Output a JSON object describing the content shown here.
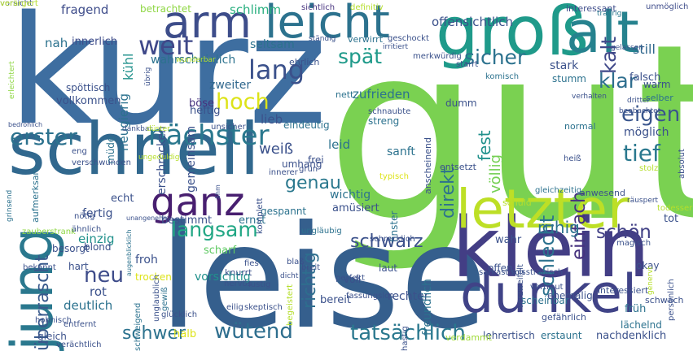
{
  "words": [
    {
      "text": "gut",
      "color": "#7ad151"
    },
    {
      "text": "kurz",
      "color": "#3e6ea0"
    },
    {
      "text": "leise",
      "color": "#355f8d"
    },
    {
      "text": "groß",
      "color": "#1f9a8a"
    },
    {
      "text": "klein",
      "color": "#433e85"
    },
    {
      "text": "schnell",
      "color": "#31688e"
    },
    {
      "text": "jung",
      "color": "#2a788e"
    },
    {
      "text": "dunkel",
      "color": "#404387"
    },
    {
      "text": "alt",
      "color": "#26828e"
    },
    {
      "text": "leicht",
      "color": "#2c728e"
    },
    {
      "text": "letzter",
      "color": "#bddf26"
    },
    {
      "text": "arm",
      "color": "#3d4d8a"
    },
    {
      "text": "ganz",
      "color": "#481f70"
    },
    {
      "text": "nächster",
      "color": "#2a788e"
    },
    {
      "text": "lang",
      "color": "#3b518b"
    },
    {
      "text": "weit",
      "color": "#3f4889"
    },
    {
      "text": "hoch",
      "color": "#dde318"
    },
    {
      "text": "spät",
      "color": "#1f9a8a"
    },
    {
      "text": "sicher",
      "color": "#2c728e"
    },
    {
      "text": "kalt",
      "color": "#3f4889"
    },
    {
      "text": "klar",
      "color": "#2e6e8e"
    },
    {
      "text": "fest",
      "color": "#21918c"
    },
    {
      "text": "eigen",
      "color": "#39558c"
    },
    {
      "text": "tief",
      "color": "#2a788e"
    },
    {
      "text": "einfach",
      "color": "#46327e"
    },
    {
      "text": "schlecht",
      "color": "#2c728e"
    },
    {
      "text": "völlig",
      "color": "#75d054"
    },
    {
      "text": "langsam",
      "color": "#22a785"
    },
    {
      "text": "genau",
      "color": "#2a788e"
    },
    {
      "text": "richtig",
      "color": "#2e6e8e"
    },
    {
      "text": "schwarz",
      "color": "#3b518b"
    },
    {
      "text": "ruhig",
      "color": "#2c728e"
    },
    {
      "text": "schön",
      "color": "#424186"
    },
    {
      "text": "erster",
      "color": "#2c728e"
    },
    {
      "text": "neu",
      "color": "#3e4c8a"
    },
    {
      "text": "überrascht",
      "color": "#38598c"
    },
    {
      "text": "schwer",
      "color": "#2c728e"
    },
    {
      "text": "wütend",
      "color": "#2e6e8e"
    },
    {
      "text": "tatsächlich",
      "color": "#2a788e"
    },
    {
      "text": "direkt",
      "color": "#2c728e"
    },
    {
      "text": "weiß",
      "color": "#3b518b"
    },
    {
      "text": "fragend",
      "color": "#3e4c8a"
    },
    {
      "text": "betrachtet",
      "color": "#8fd744"
    },
    {
      "text": "schlimm",
      "color": "#29af7f"
    },
    {
      "text": "sichtlich",
      "color": "#46327e"
    },
    {
      "text": "definitiv",
      "color": "#b5de2b"
    },
    {
      "text": "interessant",
      "color": "#3e4c8a"
    },
    {
      "text": "neugierig",
      "color": "#2c728e"
    },
    {
      "text": "innerlich",
      "color": "#3e4c8a"
    },
    {
      "text": "nah",
      "color": "#2c728e"
    },
    {
      "text": "wahrscheinlich",
      "color": "#2c728e"
    },
    {
      "text": "seltsam",
      "color": "#2c728e"
    },
    {
      "text": "offensichtlich",
      "color": "#3b518b"
    },
    {
      "text": "unmöglich",
      "color": "#3e4c8a"
    },
    {
      "text": "traurig",
      "color": "#2a788e"
    },
    {
      "text": "kühl",
      "color": "#21918c"
    },
    {
      "text": "erschrocken",
      "color": "#3b518b"
    },
    {
      "text": "still",
      "color": "#31688e"
    },
    {
      "text": "zweiter",
      "color": "#31688e"
    },
    {
      "text": "gemeinsam",
      "color": "#3b518b"
    },
    {
      "text": "heftig",
      "color": "#3b518b"
    },
    {
      "text": "böse",
      "color": "#46327e"
    },
    {
      "text": "ehrlich",
      "color": "#3b518b"
    },
    {
      "text": "nett",
      "color": "#2c728e"
    },
    {
      "text": "dumm",
      "color": "#3b518b"
    },
    {
      "text": "zufrieden",
      "color": "#2c728e"
    },
    {
      "text": "stark",
      "color": "#3b518b"
    },
    {
      "text": "stumm",
      "color": "#2c728e"
    },
    {
      "text": "falsch",
      "color": "#3b518b"
    },
    {
      "text": "warm",
      "color": "#3b518b"
    },
    {
      "text": "selber",
      "color": "#2c728e"
    },
    {
      "text": "möglich",
      "color": "#3b518b"
    },
    {
      "text": "lieb",
      "color": "#3b518b"
    },
    {
      "text": "eindeutig",
      "color": "#2c728e"
    },
    {
      "text": "streng",
      "color": "#2c728e"
    },
    {
      "text": "sanft",
      "color": "#2c728e"
    },
    {
      "text": "wichtig",
      "color": "#2c728e"
    },
    {
      "text": "amüsiert",
      "color": "#3b518b"
    },
    {
      "text": "umhang",
      "color": "#3b518b"
    },
    {
      "text": "frei",
      "color": "#3b518b"
    },
    {
      "text": "leid",
      "color": "#2c728e"
    },
    {
      "text": "echt",
      "color": "#3b518b"
    },
    {
      "text": "fertig",
      "color": "#3b518b"
    },
    {
      "text": "bestimmt",
      "color": "#3b518b"
    },
    {
      "text": "ernst",
      "color": "#2c728e"
    },
    {
      "text": "wahr",
      "color": "#3b518b"
    },
    {
      "text": "tot",
      "color": "#3b518b"
    },
    {
      "text": "einzig",
      "color": "#21918c"
    },
    {
      "text": "scharf",
      "color": "#5ec962"
    },
    {
      "text": "froh",
      "color": "#3b518b"
    },
    {
      "text": "vorsichtig",
      "color": "#21918c"
    },
    {
      "text": "rot",
      "color": "#3b518b"
    },
    {
      "text": "deutlich",
      "color": "#2c728e"
    },
    {
      "text": "halb",
      "color": "#dde318"
    },
    {
      "text": "gleich",
      "color": "#3b518b"
    },
    {
      "text": "rechter",
      "color": "#3b518b"
    },
    {
      "text": "bereit",
      "color": "#3b518b"
    },
    {
      "text": "früh",
      "color": "#2c728e"
    },
    {
      "text": "lächelnd",
      "color": "#2c728e"
    },
    {
      "text": "nachdenklich",
      "color": "#3b518b"
    },
    {
      "text": "erstaunt",
      "color": "#2c728e"
    },
    {
      "text": "lehrertisch",
      "color": "#3b518b"
    },
    {
      "text": "verdammt",
      "color": "#a0da39"
    },
    {
      "text": "scheinbar",
      "color": "#2c728e"
    },
    {
      "text": "ehemalig",
      "color": "#3b518b"
    },
    {
      "text": "offen",
      "color": "#3b518b"
    },
    {
      "text": "schwach",
      "color": "#3b518b"
    },
    {
      "text": "okay",
      "color": "#3b518b"
    },
    {
      "text": "freundlich",
      "color": "#2c728e"
    },
    {
      "text": "finster",
      "color": "#2c728e"
    },
    {
      "text": "anscheinend",
      "color": "#3b518b"
    },
    {
      "text": "laut",
      "color": "#3b518b"
    },
    {
      "text": "voll",
      "color": "#3b518b"
    },
    {
      "text": "spöttisch",
      "color": "#3b518b"
    },
    {
      "text": "vollkommen",
      "color": "#3b518b"
    },
    {
      "text": "aufmerksam",
      "color": "#2c728e"
    },
    {
      "text": "erleichtert",
      "color": "#8fd744"
    },
    {
      "text": "bedrohlich",
      "color": "#3b518b"
    },
    {
      "text": "müde",
      "color": "#2c728e"
    },
    {
      "text": "trocken",
      "color": "#dde318"
    },
    {
      "text": "glücklich",
      "color": "#3b518b"
    },
    {
      "text": "gewiß",
      "color": "#2c728e"
    },
    {
      "text": "unglaublich",
      "color": "#3b518b"
    },
    {
      "text": "blond",
      "color": "#3b518b"
    },
    {
      "text": "besorgt",
      "color": "#3b518b"
    },
    {
      "text": "hart",
      "color": "#3b518b"
    },
    {
      "text": "knurrt",
      "color": "#3b518b"
    },
    {
      "text": "nervös",
      "color": "#3b518b"
    },
    {
      "text": "magisch",
      "color": "#3b518b"
    },
    {
      "text": "gefährlich",
      "color": "#3b518b"
    },
    {
      "text": "todesser",
      "color": "#b5de2b"
    },
    {
      "text": "absolut",
      "color": "#3b518b"
    },
    {
      "text": "persönlich",
      "color": "#3b518b"
    },
    {
      "text": "interessiert",
      "color": "#3b518b"
    },
    {
      "text": "schuld",
      "color": "#b5de2b"
    },
    {
      "text": "anwesend",
      "color": "#3b518b"
    },
    {
      "text": "entsetzt",
      "color": "#3b518b"
    },
    {
      "text": "normal",
      "color": "#2c728e"
    },
    {
      "text": "genervt",
      "color": "#b5de2b"
    },
    {
      "text": "ungläubig",
      "color": "#2c728e"
    },
    {
      "text": "gespannt",
      "color": "#2c728e"
    },
    {
      "text": "räuspert",
      "color": "#3b518b"
    },
    {
      "text": "stolz",
      "color": "#b5de2b"
    },
    {
      "text": "gleichzeitig",
      "color": "#2c728e"
    },
    {
      "text": "dritter",
      "color": "#3b518b"
    },
    {
      "text": "beobachtet",
      "color": "#3b518b"
    },
    {
      "text": "verhalten",
      "color": "#3b518b"
    },
    {
      "text": "schnaubte",
      "color": "#3b518b"
    },
    {
      "text": "heiß",
      "color": "#3b518b"
    },
    {
      "text": "verwirrt",
      "color": "#2c728e"
    },
    {
      "text": "ständig",
      "color": "#3b518b"
    },
    {
      "text": "geschockt",
      "color": "#3b518b"
    },
    {
      "text": "irritiert",
      "color": "#3b518b"
    },
    {
      "text": "merkwürdig",
      "color": "#3b518b"
    },
    {
      "text": "starrt",
      "color": "#3b518b"
    },
    {
      "text": "komisch",
      "color": "#2c728e"
    },
    {
      "text": "gelassen",
      "color": "#3b518b"
    },
    {
      "text": "dankbar",
      "color": "#3b518b"
    },
    {
      "text": "unsicher",
      "color": "#3b518b"
    },
    {
      "text": "eng",
      "color": "#3b518b"
    },
    {
      "text": "verschwunden",
      "color": "#3b518b"
    },
    {
      "text": "grinsend",
      "color": "#2c728e"
    },
    {
      "text": "nötig",
      "color": "#3b518b"
    },
    {
      "text": "zauberstrank",
      "color": "#8fd744"
    },
    {
      "text": "ähnlich",
      "color": "#3b518b"
    },
    {
      "text": "bekannt",
      "color": "#3b518b"
    },
    {
      "text": "hohnisch",
      "color": "#3b518b"
    },
    {
      "text": "schweigend",
      "color": "#2c728e"
    },
    {
      "text": "verächtlich",
      "color": "#3b518b"
    },
    {
      "text": "entfernt",
      "color": "#3b518b"
    },
    {
      "text": "blaß",
      "color": "#3b518b"
    },
    {
      "text": "perfekt",
      "color": "#3b518b"
    },
    {
      "text": "fies",
      "color": "#3b518b"
    },
    {
      "text": "breit",
      "color": "#3b518b"
    },
    {
      "text": "dicht",
      "color": "#3b518b"
    },
    {
      "text": "lustig",
      "color": "#3b518b"
    },
    {
      "text": "eilig",
      "color": "#3b518b"
    },
    {
      "text": "skeptisch",
      "color": "#3b518b"
    },
    {
      "text": "innerer",
      "color": "#3b518b"
    },
    {
      "text": "grün",
      "color": "#3b518b"
    },
    {
      "text": "komplett",
      "color": "#3b518b"
    },
    {
      "text": "typisch",
      "color": "#dde318"
    },
    {
      "text": "sarkastisch",
      "color": "#3b518b"
    },
    {
      "text": "misstrauisch",
      "color": "#3b518b"
    },
    {
      "text": "vertraut",
      "color": "#3b518b"
    },
    {
      "text": "verzweifelt",
      "color": "#3b518b"
    },
    {
      "text": "hastig",
      "color": "#3b518b"
    },
    {
      "text": "fassungslos",
      "color": "#3b518b"
    },
    {
      "text": "begeistert",
      "color": "#b5de2b"
    },
    {
      "text": "unangenehm",
      "color": "#3b518b"
    },
    {
      "text": "augenblicklich",
      "color": "#2c728e"
    },
    {
      "text": "ähm",
      "color": "#3b518b"
    },
    {
      "text": "schrecklich",
      "color": "#3b518b"
    },
    {
      "text": "übrig",
      "color": "#3b518b"
    },
    {
      "text": "düster",
      "color": "#b5de2b"
    },
    {
      "text": "ungeduldig",
      "color": "#b5de2b"
    },
    {
      "text": "wunderbar",
      "color": "#b5de2b"
    },
    {
      "text": "vorsicht",
      "color": "#3b518b"
    },
    {
      "text": "verärgert",
      "color": "#b5de2b"
    }
  ]
}
